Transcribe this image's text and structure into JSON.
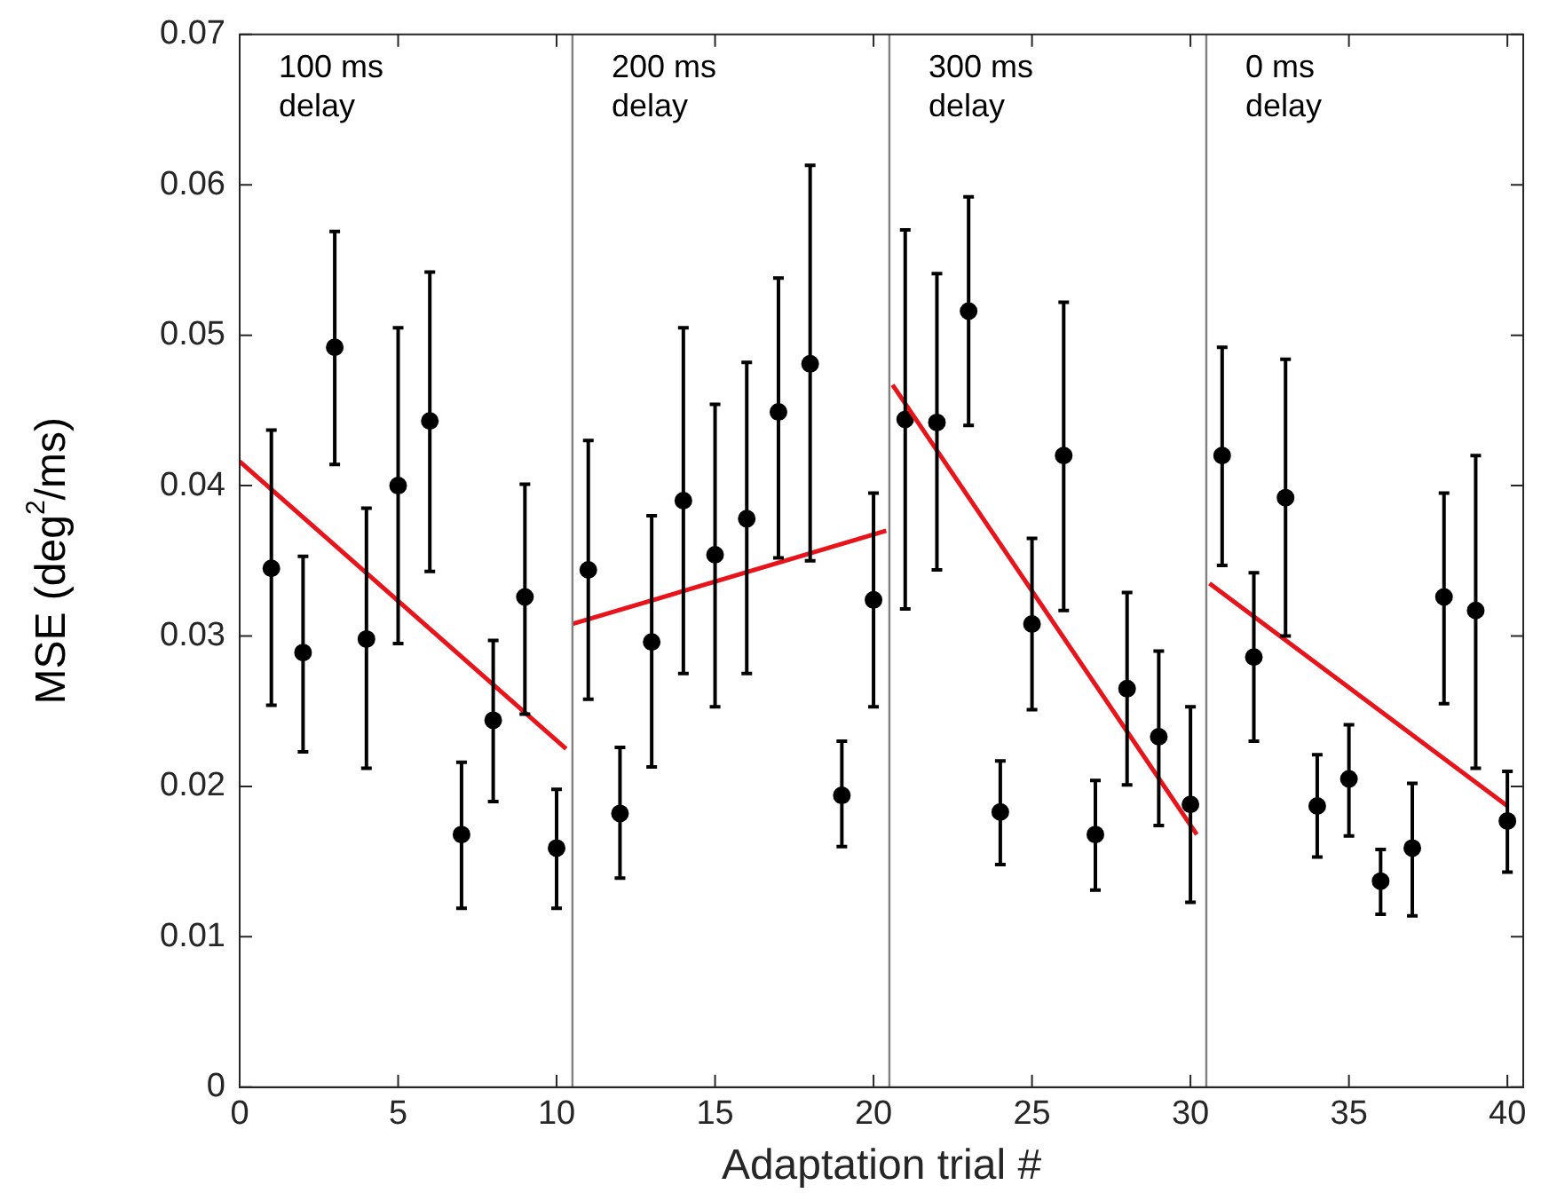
{
  "chart_data": {
    "type": "scatter",
    "xlabel": "Adaptation trial #",
    "ylabel": "MSE (deg$^{2}$/ms)",
    "xlim": [
      0,
      40.5
    ],
    "ylim": [
      0,
      0.07
    ],
    "xticks": [
      0,
      5,
      10,
      15,
      20,
      25,
      30,
      35,
      40
    ],
    "yticks": [
      0,
      0.01,
      0.02,
      0.03,
      0.04,
      0.05,
      0.06,
      0.07
    ],
    "grid": false,
    "legend": false,
    "annotations": [
      "100 ms\ndelay",
      "200 ms\ndelay",
      "300 ms\ndelay",
      "0 ms\ndelay"
    ],
    "ref_lines": [
      {
        "axis": "x",
        "value": 10.5,
        "color": "#808080"
      },
      {
        "axis": "x",
        "value": 20.5,
        "color": "#808080"
      },
      {
        "axis": "x",
        "value": 30.5,
        "color": "#808080"
      }
    ],
    "series": [
      {
        "marker": "circle",
        "color": "#000000",
        "x": [
          1,
          2,
          3,
          4,
          5,
          6,
          7,
          8,
          9,
          10,
          11,
          12,
          13,
          14,
          15,
          16,
          17,
          18,
          19,
          20,
          21,
          22,
          23,
          24,
          25,
          26,
          27,
          28,
          29,
          30,
          31,
          32,
          33,
          34,
          35,
          36,
          37,
          38,
          39,
          40
        ],
        "values": [
          0.0345,
          0.0289,
          0.0492,
          0.0298,
          0.04,
          0.0443,
          0.0168,
          0.0244,
          0.0326,
          0.0159,
          0.0344,
          0.0182,
          0.0296,
          0.039,
          0.0354,
          0.0378,
          0.0449,
          0.0481,
          0.0194,
          0.0324,
          0.0444,
          0.0442,
          0.0516,
          0.0183,
          0.0308,
          0.042,
          0.0168,
          0.0265,
          0.0233,
          0.0188,
          0.042,
          0.0286,
          0.0392,
          0.0187,
          0.0205,
          0.0137,
          0.0159,
          0.0326,
          0.0317,
          0.0177
        ],
        "errors": [
          [
            0.0254,
            0.0437
          ],
          [
            0.0223,
            0.0353
          ],
          [
            0.0414,
            0.0569
          ],
          [
            0.0212,
            0.0385
          ],
          [
            0.0295,
            0.0505
          ],
          [
            0.0343,
            0.0542
          ],
          [
            0.0119,
            0.0216
          ],
          [
            0.019,
            0.0297
          ],
          [
            0.0248,
            0.0401
          ],
          [
            0.0119,
            0.0198
          ],
          [
            0.0258,
            0.043
          ],
          [
            0.0139,
            0.0226
          ],
          [
            0.0213,
            0.038
          ],
          [
            0.0275,
            0.0505
          ],
          [
            0.0253,
            0.0454
          ],
          [
            0.0275,
            0.0482
          ],
          [
            0.0352,
            0.0538
          ],
          [
            0.035,
            0.0613
          ],
          [
            0.016,
            0.023
          ],
          [
            0.0253,
            0.0395
          ],
          [
            0.0318,
            0.057
          ],
          [
            0.0344,
            0.0541
          ],
          [
            0.044,
            0.0592
          ],
          [
            0.0148,
            0.0217
          ],
          [
            0.0251,
            0.0365
          ],
          [
            0.0317,
            0.0522
          ],
          [
            0.0131,
            0.0204
          ],
          [
            0.0201,
            0.0329
          ],
          [
            0.0174,
            0.029
          ],
          [
            0.0123,
            0.0253
          ],
          [
            0.0347,
            0.0492
          ],
          [
            0.023,
            0.0342
          ],
          [
            0.03,
            0.0484
          ],
          [
            0.0153,
            0.0221
          ],
          [
            0.0167,
            0.0241
          ],
          [
            0.0115,
            0.0158
          ],
          [
            0.0114,
            0.0202
          ],
          [
            0.0255,
            0.0395
          ],
          [
            0.0212,
            0.042
          ],
          [
            0.0143,
            0.021
          ]
        ]
      },
      {
        "type": "line",
        "marker": "none",
        "color": "#e8141c",
        "x": [
          0,
          10.3
        ],
        "values": [
          0.0416,
          0.0225
        ]
      },
      {
        "type": "line",
        "marker": "none",
        "color": "#e8141c",
        "x": [
          10.5,
          20.4
        ],
        "values": [
          0.0308,
          0.037
        ]
      },
      {
        "type": "line",
        "marker": "none",
        "color": "#e8141c",
        "x": [
          20.6,
          30.2
        ],
        "values": [
          0.0467,
          0.0168
        ]
      },
      {
        "type": "line",
        "marker": "none",
        "color": "#e8141c",
        "x": [
          30.6,
          40
        ],
        "values": [
          0.0335,
          0.0187
        ]
      }
    ]
  }
}
